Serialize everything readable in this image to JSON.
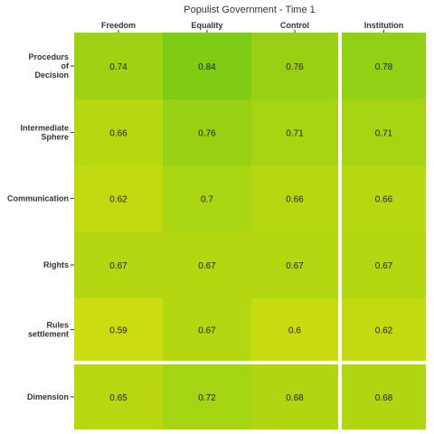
{
  "chart_data": {
    "type": "heatmap",
    "title": "Populist Government - Time 1",
    "columns": [
      "Freedom",
      "Equality",
      "Control",
      "Institution"
    ],
    "rows": [
      "Procedurs\nof\nDecision",
      "Intermediate\nSphere",
      "Communication",
      "Rights",
      "Rules\nsettlement",
      "Dimension"
    ],
    "values": [
      [
        0.74,
        0.84,
        0.76,
        0.78
      ],
      [
        0.66,
        0.76,
        0.71,
        0.71
      ],
      [
        0.62,
        0.7,
        0.66,
        0.66
      ],
      [
        0.67,
        0.67,
        0.67,
        0.67
      ],
      [
        0.59,
        0.67,
        0.6,
        0.62
      ],
      [
        0.65,
        0.72,
        0.68,
        0.68
      ]
    ],
    "value_labels": [
      [
        "0.74",
        "0.84",
        "0.76",
        "0.78"
      ],
      [
        "0.66",
        "0.76",
        "0.71",
        "0.71"
      ],
      [
        "0.62",
        "0.7",
        "0.66",
        "0.66"
      ],
      [
        "0.67",
        "0.67",
        "0.67",
        "0.67"
      ],
      [
        "0.59",
        "0.67",
        "0.6",
        "0.62"
      ],
      [
        "0.65",
        "0.72",
        "0.68",
        "0.68"
      ]
    ],
    "facets": {
      "column_groups": [
        [
          "Freedom",
          "Equality",
          "Control"
        ],
        [
          "Institution"
        ]
      ],
      "row_groups": [
        [
          "Procedurs\nof\nDecision",
          "Intermediate\nSphere",
          "Communication",
          "Rights",
          "Rules\nsettlement"
        ],
        [
          "Dimension"
        ]
      ]
    },
    "color_scale": {
      "low_value": 0.59,
      "low_color": "#cbdc10",
      "high_value": 0.84,
      "high_color": "#80cc14"
    },
    "grid": false
  }
}
